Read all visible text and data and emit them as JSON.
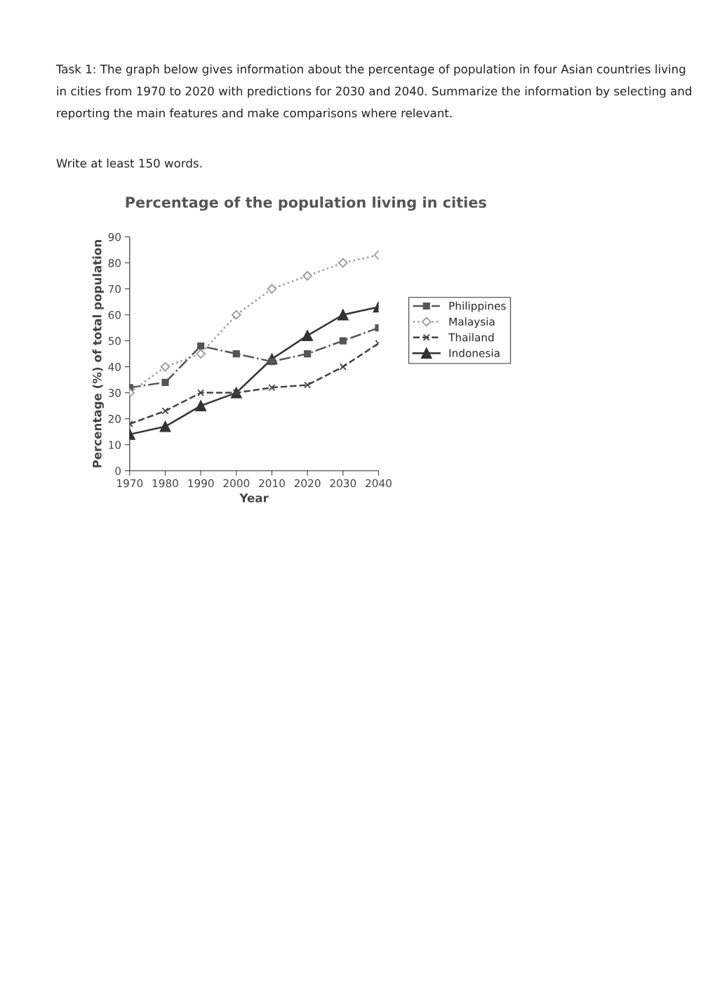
{
  "chart_data": {
    "type": "line",
    "title": "Percentage of the population living in cities",
    "xlabel": "Year",
    "ylabel": "Percentage (%) of total population",
    "x": [
      1970,
      1980,
      1990,
      2000,
      2010,
      2020,
      2030,
      2040
    ],
    "series": [
      {
        "name": "Philippines",
        "color": "#555555",
        "marker": "square",
        "line_style": "dashdot",
        "values": [
          32,
          34,
          48,
          45,
          42,
          45,
          50,
          55
        ]
      },
      {
        "name": "Malaysia",
        "color": "#9a9a9a",
        "marker": "diamond",
        "line_style": "dotted",
        "values": [
          30,
          40,
          45,
          60,
          70,
          75,
          80,
          83
        ]
      },
      {
        "name": "Thailand",
        "color": "#444444",
        "marker": "cross",
        "line_style": "dashed",
        "values": [
          18,
          23,
          30,
          30,
          32,
          33,
          40,
          49
        ]
      },
      {
        "name": "Indonesia",
        "color": "#333333",
        "marker": "triangle",
        "line_style": "solid",
        "values": [
          14,
          17,
          25,
          30,
          43,
          52,
          60,
          63
        ]
      }
    ],
    "xlim": [
      1970,
      2040
    ],
    "xticks": [
      1970,
      1980,
      1990,
      2000,
      2010,
      2020,
      2030,
      2040
    ],
    "ylim": [
      0,
      90
    ],
    "yticks": [
      0,
      10,
      20,
      30,
      40,
      50,
      60,
      70,
      80,
      90
    ],
    "grid": false,
    "legend": "right",
    "annotations": [
      "Task 1: The graph below gives information about the percentage of population in four Asian countries living in cities from 1970 to 2020 with predictions for 2030 and 2040. Summarize the information by selecting and reporting the main features and make comparisons where relevant.",
      "Write at least 150 words."
    ]
  }
}
